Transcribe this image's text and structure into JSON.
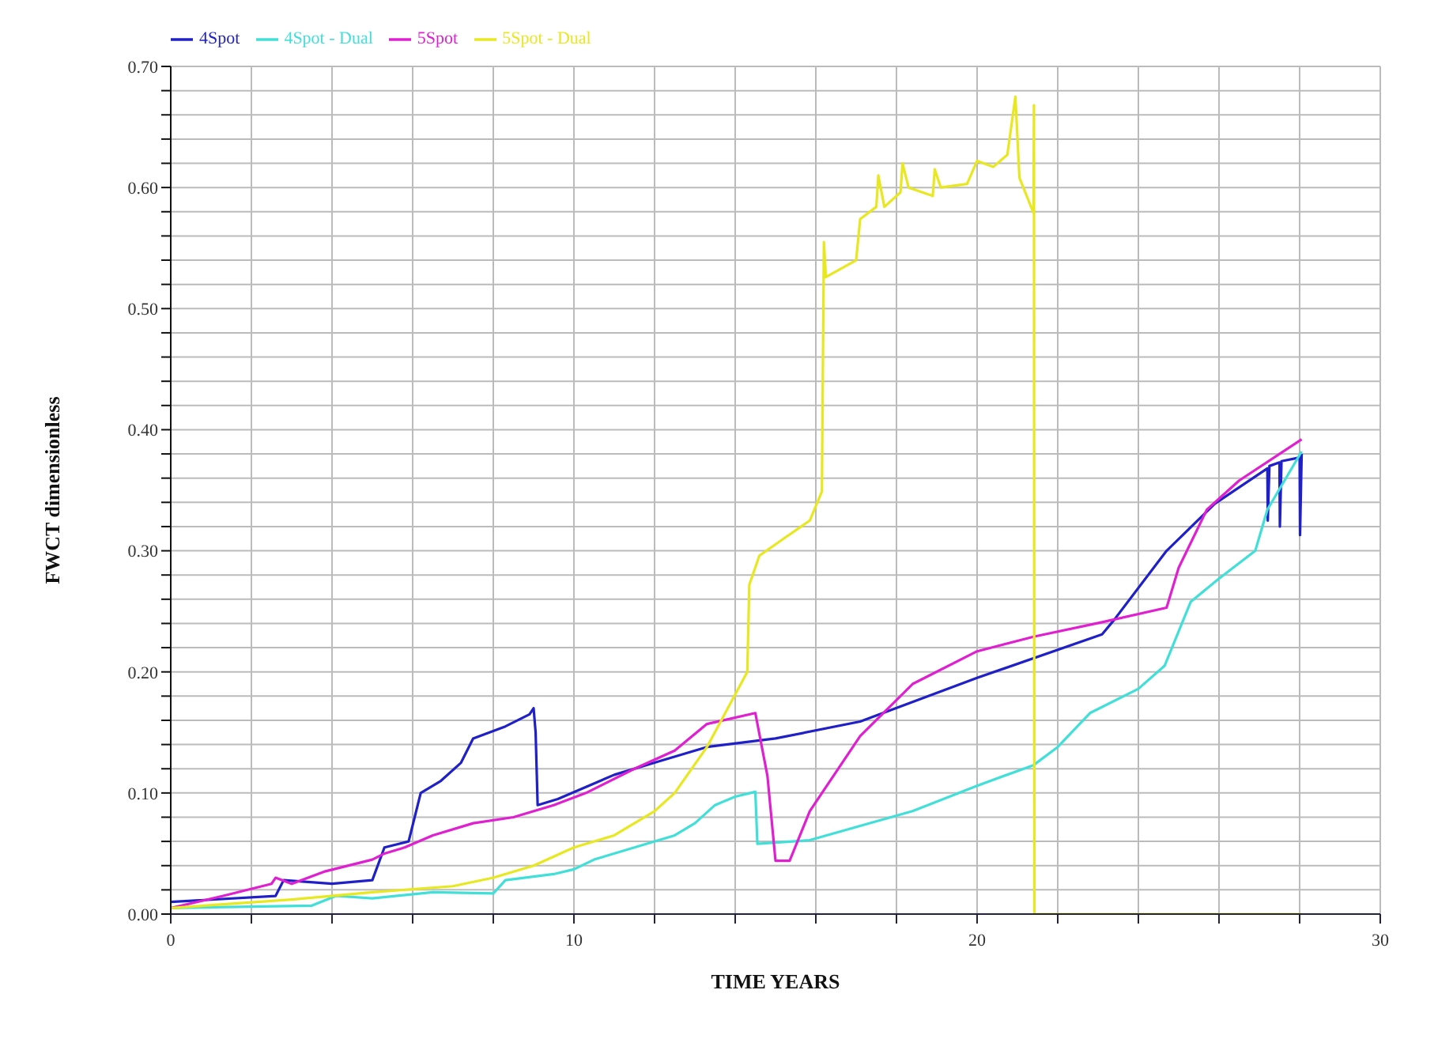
{
  "chart_data": {
    "type": "line",
    "xlabel": "TIME YEARS",
    "ylabel": "FWCT dimensionless",
    "xlim": [
      0,
      30
    ],
    "ylim": [
      0,
      0.7
    ],
    "xticks": [
      0,
      {
        "value": 2,
        "label": null
      },
      {
        "value": 4,
        "label": null
      },
      {
        "value": 6,
        "label": null
      },
      {
        "value": 8,
        "label": null
      },
      10,
      {
        "value": 12,
        "label": null
      },
      {
        "value": 14,
        "label": null
      },
      {
        "value": 16,
        "label": null
      },
      {
        "value": 18,
        "label": null
      },
      20,
      {
        "value": 22,
        "label": null
      },
      {
        "value": 24,
        "label": null
      },
      {
        "value": 26,
        "label": null
      },
      {
        "value": 28,
        "label": null
      },
      30
    ],
    "yticks": [
      {
        "value": 0,
        "label": "0.00"
      },
      {
        "value": 0.02,
        "label": null
      },
      {
        "value": 0.04,
        "label": null
      },
      {
        "value": 0.06,
        "label": null
      },
      {
        "value": 0.08,
        "label": null
      },
      {
        "value": 0.1,
        "label": "0.10"
      },
      {
        "value": 0.12,
        "label": null
      },
      {
        "value": 0.14,
        "label": null
      },
      {
        "value": 0.16,
        "label": null
      },
      {
        "value": 0.18,
        "label": null
      },
      {
        "value": 0.2,
        "label": "0.20"
      },
      {
        "value": 0.22,
        "label": null
      },
      {
        "value": 0.24,
        "label": null
      },
      {
        "value": 0.26,
        "label": null
      },
      {
        "value": 0.28,
        "label": null
      },
      {
        "value": 0.3,
        "label": "0.30"
      },
      {
        "value": 0.32,
        "label": null
      },
      {
        "value": 0.34,
        "label": null
      },
      {
        "value": 0.36,
        "label": null
      },
      {
        "value": 0.38,
        "label": null
      },
      {
        "value": 0.4,
        "label": "0.40"
      },
      {
        "value": 0.42,
        "label": null
      },
      {
        "value": 0.44,
        "label": null
      },
      {
        "value": 0.46,
        "label": null
      },
      {
        "value": 0.48,
        "label": null
      },
      {
        "value": 0.5,
        "label": "0.50"
      },
      {
        "value": 0.52,
        "label": null
      },
      {
        "value": 0.54,
        "label": null
      },
      {
        "value": 0.56,
        "label": null
      },
      {
        "value": 0.58,
        "label": null
      },
      {
        "value": 0.6,
        "label": "0.60"
      },
      {
        "value": 0.62,
        "label": null
      },
      {
        "value": 0.64,
        "label": null
      },
      {
        "value": 0.66,
        "label": null
      },
      {
        "value": 0.68,
        "label": null
      },
      {
        "value": 0.7,
        "label": "0.70"
      }
    ],
    "grid": true,
    "legend": "top",
    "marker": "none",
    "line_style": "solid",
    "series": [
      {
        "name": "4Spot",
        "color": "#2020c8",
        "x": [
          0,
          2.6,
          2.8,
          4,
          5,
          5.3,
          5.9,
          6.2,
          6.7,
          7.2,
          7.5,
          8.3,
          8.9,
          9.0,
          9.05,
          9.1,
          9.6,
          10.3,
          11,
          12,
          13.3,
          15,
          17.1,
          20,
          23.1,
          23.4,
          24.7,
          25.9,
          27.2,
          27.21,
          27.25,
          27.5,
          27.51,
          27.55,
          28.0,
          28.01,
          28.05
        ],
        "values": [
          0.01,
          0.015,
          0.028,
          0.025,
          0.028,
          0.055,
          0.06,
          0.1,
          0.11,
          0.125,
          0.145,
          0.155,
          0.165,
          0.17,
          0.15,
          0.09,
          0.095,
          0.105,
          0.115,
          0.125,
          0.138,
          0.145,
          0.159,
          0.195,
          0.231,
          0.243,
          0.3,
          0.339,
          0.368,
          0.325,
          0.37,
          0.373,
          0.32,
          0.374,
          0.377,
          0.313,
          0.38
        ]
      },
      {
        "name": "4Spot - Dual",
        "color": "#40e0d8",
        "x": [
          0,
          3.5,
          4.1,
          5,
          6.5,
          8,
          8.3,
          9.5,
          10,
          10.5,
          11.5,
          12.5,
          13,
          13.5,
          14,
          14.5,
          14.55,
          15.85,
          18.4,
          20,
          21.4,
          22,
          22.8,
          24,
          24.65,
          25.3,
          26,
          26.9,
          27.2,
          28.05
        ],
        "values": [
          0.005,
          0.007,
          0.015,
          0.013,
          0.018,
          0.017,
          0.028,
          0.033,
          0.037,
          0.045,
          0.055,
          0.065,
          0.075,
          0.09,
          0.097,
          0.101,
          0.058,
          0.061,
          0.085,
          0.106,
          0.123,
          0.138,
          0.166,
          0.186,
          0.205,
          0.258,
          0.277,
          0.3,
          0.334,
          0.382
        ]
      },
      {
        "name": "5Spot",
        "color": "#e020d0",
        "x": [
          0,
          1.3,
          2.5,
          2.6,
          3,
          3.8,
          5,
          5.3,
          5.8,
          6.5,
          7.5,
          8.5,
          9.5,
          10.3,
          11.5,
          12.5,
          13.3,
          14.5,
          14.8,
          15,
          15.35,
          15.85,
          17.1,
          18.4,
          20,
          21.4,
          23.1,
          24.7,
          25,
          25.7,
          26.5,
          28.05
        ],
        "values": [
          0.005,
          0.015,
          0.025,
          0.03,
          0.025,
          0.035,
          0.045,
          0.05,
          0.055,
          0.065,
          0.075,
          0.08,
          0.09,
          0.1,
          0.12,
          0.135,
          0.157,
          0.166,
          0.114,
          0.044,
          0.044,
          0.085,
          0.147,
          0.19,
          0.217,
          0.229,
          0.241,
          0.253,
          0.286,
          0.334,
          0.358,
          0.392
        ]
      },
      {
        "name": "5Spot - Dual",
        "color": "#e8e820",
        "x": [
          0,
          3,
          5,
          7,
          8,
          9,
          10,
          11,
          12,
          12.5,
          13.3,
          14.3,
          14.35,
          14.6,
          15.2,
          15.85,
          16.15,
          16.2,
          16.25,
          17,
          17.1,
          17.5,
          17.55,
          17.7,
          18.1,
          18.15,
          18.3,
          18.9,
          18.95,
          19.1,
          19.75,
          20,
          20.4,
          20.75,
          20.95,
          21.05,
          21.4,
          21.41,
          21.42,
          28.05
        ],
        "values": [
          0.005,
          0.012,
          0.018,
          0.023,
          0.03,
          0.04,
          0.055,
          0.065,
          0.085,
          0.1,
          0.138,
          0.2,
          0.272,
          0.296,
          0.31,
          0.325,
          0.349,
          0.555,
          0.526,
          0.54,
          0.574,
          0.584,
          0.61,
          0.584,
          0.596,
          0.62,
          0.6,
          0.593,
          0.615,
          0.6,
          0.603,
          0.622,
          0.617,
          0.627,
          0.675,
          0.608,
          0.579,
          0.668,
          0,
          0
        ]
      }
    ]
  }
}
